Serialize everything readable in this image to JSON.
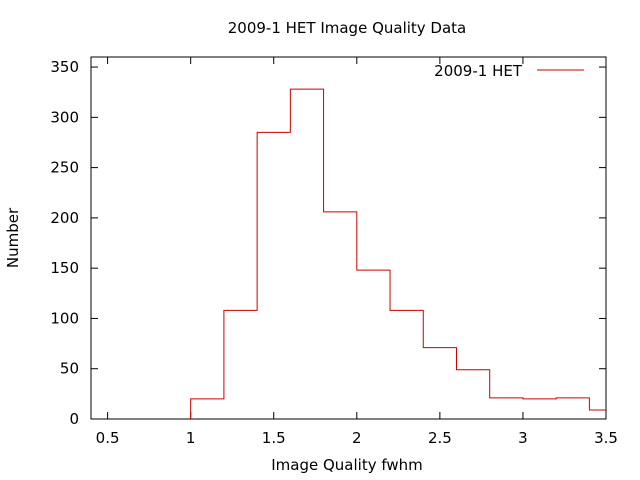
{
  "chart_data": {
    "type": "histogram",
    "title": "2009-1 HET Image Quality Data",
    "xlabel": "Image Quality fwhm",
    "ylabel": "Number",
    "xlim": [
      0.4,
      3.5
    ],
    "ylim": [
      0,
      360
    ],
    "xticks": [
      0.5,
      1,
      1.5,
      2,
      2.5,
      3,
      3.5
    ],
    "xtick_labels": [
      "0.5",
      "1",
      "1.5",
      "2",
      "2.5",
      "3",
      "3.5"
    ],
    "yticks": [
      0,
      50,
      100,
      150,
      200,
      250,
      300,
      350
    ],
    "ytick_labels": [
      "0",
      "50",
      "100",
      "150",
      "200",
      "250",
      "300",
      "350"
    ],
    "grid": false,
    "legend_position": "top-right",
    "series": [
      {
        "name": "2009-1 HET",
        "color": "#cc0000",
        "bins": [
          {
            "x0": 1.0,
            "x1": 1.2,
            "value": 20
          },
          {
            "x0": 1.2,
            "x1": 1.4,
            "value": 108
          },
          {
            "x0": 1.4,
            "x1": 1.6,
            "value": 285
          },
          {
            "x0": 1.6,
            "x1": 1.8,
            "value": 328
          },
          {
            "x0": 1.8,
            "x1": 2.0,
            "value": 206
          },
          {
            "x0": 2.0,
            "x1": 2.2,
            "value": 148
          },
          {
            "x0": 2.2,
            "x1": 2.4,
            "value": 108
          },
          {
            "x0": 2.4,
            "x1": 2.6,
            "value": 71
          },
          {
            "x0": 2.6,
            "x1": 2.8,
            "value": 49
          },
          {
            "x0": 2.8,
            "x1": 3.0,
            "value": 21
          },
          {
            "x0": 3.0,
            "x1": 3.2,
            "value": 20
          },
          {
            "x0": 3.2,
            "x1": 3.4,
            "value": 21
          },
          {
            "x0": 3.4,
            "x1": 3.5,
            "value": 9
          }
        ]
      }
    ]
  }
}
